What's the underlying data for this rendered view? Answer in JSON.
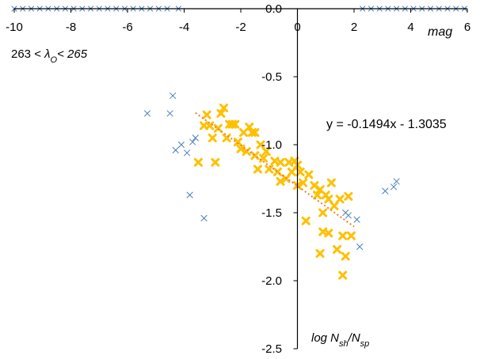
{
  "chart_data": {
    "type": "scatter",
    "title_parts": {
      "prefix": "263 < ",
      "symbol": "λ",
      "subscript": "O",
      "suffix": "< 265"
    },
    "xlabel": "mag",
    "ylabel_parts": {
      "a": "log N",
      "a_sub": "sh",
      "slash": "/N",
      "b_sub": "sp"
    },
    "xlim": [
      -10,
      6
    ],
    "ylim": [
      -2.5,
      0
    ],
    "x_ticks": [
      -10,
      -8,
      -6,
      -4,
      -2,
      0,
      2,
      4,
      6
    ],
    "y_ticks": [
      -2.5,
      -2.0,
      -1.5,
      -1.0,
      -0.5,
      0.0
    ],
    "x_tick_labels": [
      "-10",
      "-8",
      "-6",
      "-4",
      "-2",
      "0",
      "2",
      "4",
      "6"
    ],
    "y_tick_labels": [
      "-2.5",
      "-2.0",
      "-1.5",
      "-1.0",
      "-0.5",
      "0.0"
    ],
    "grid": false,
    "equation": "y = -0.1494x - 1.3035",
    "trendline": {
      "slope": -0.1494,
      "intercept": -1.3035,
      "x_range": [
        -3.6,
        2.0
      ]
    },
    "colors": {
      "all_points": "#4a7ebb",
      "fit_points": "#ffc000",
      "trendline": "#ed7d31",
      "axis": "#000000"
    },
    "series": [
      {
        "marker": "x",
        "points": [
          [
            -5.3,
            -0.77
          ],
          [
            -4.5,
            -0.77
          ],
          [
            -4.4,
            -0.64
          ],
          [
            -4.3,
            -1.04
          ],
          [
            -4.1,
            -1.0
          ],
          [
            -3.9,
            -1.06
          ],
          [
            -3.7,
            -0.98
          ],
          [
            -3.6,
            -0.95
          ],
          [
            -3.8,
            -1.37
          ],
          [
            -3.3,
            -1.54
          ],
          [
            1.8,
            -1.52
          ],
          [
            2.1,
            -1.55
          ],
          [
            1.7,
            -1.5
          ],
          [
            2.2,
            -1.75
          ],
          [
            3.1,
            -1.34
          ],
          [
            3.4,
            -1.31
          ],
          [
            3.5,
            -1.27
          ]
        ]
      },
      {
        "marker": "x-yellow",
        "points": [
          [
            -3.5,
            -1.13
          ],
          [
            -3.3,
            -0.86
          ],
          [
            -3.2,
            -0.78
          ],
          [
            -3.1,
            -0.86
          ],
          [
            -3.0,
            -0.95
          ],
          [
            -2.9,
            -1.13
          ],
          [
            -2.8,
            -0.88
          ],
          [
            -2.7,
            -0.77
          ],
          [
            -2.6,
            -0.73
          ],
          [
            -2.5,
            -0.95
          ],
          [
            -2.4,
            -0.85
          ],
          [
            -2.3,
            -0.85
          ],
          [
            -2.2,
            -0.85
          ],
          [
            -2.1,
            -0.98
          ],
          [
            -2.0,
            -1.03
          ],
          [
            -1.9,
            -0.91
          ],
          [
            -1.8,
            -1.05
          ],
          [
            -1.7,
            -0.87
          ],
          [
            -1.6,
            -0.91
          ],
          [
            -1.5,
            -0.91
          ],
          [
            -1.5,
            -1.08
          ],
          [
            -1.4,
            -1.18
          ],
          [
            -1.3,
            -1.0
          ],
          [
            -1.2,
            -1.1
          ],
          [
            -1.1,
            -1.05
          ],
          [
            -1.0,
            -1.18
          ],
          [
            -0.8,
            -1.12
          ],
          [
            -0.7,
            -1.2
          ],
          [
            -0.6,
            -1.13
          ],
          [
            -0.6,
            -1.27
          ],
          [
            -0.4,
            -1.25
          ],
          [
            -0.3,
            -1.13
          ],
          [
            -0.2,
            -1.2
          ],
          [
            -0.1,
            -1.12
          ],
          [
            0.0,
            -1.15
          ],
          [
            0.0,
            -1.3
          ],
          [
            0.1,
            -1.2
          ],
          [
            0.2,
            -1.28
          ],
          [
            0.3,
            -1.56
          ],
          [
            0.4,
            -1.22
          ],
          [
            0.6,
            -1.3
          ],
          [
            0.7,
            -1.37
          ],
          [
            0.8,
            -1.8
          ],
          [
            0.8,
            -1.33
          ],
          [
            0.9,
            -1.5
          ],
          [
            0.9,
            -1.64
          ],
          [
            1.0,
            -1.37
          ],
          [
            1.1,
            -1.4
          ],
          [
            1.1,
            -1.65
          ],
          [
            1.2,
            -1.28
          ],
          [
            1.3,
            -1.45
          ],
          [
            1.4,
            -1.77
          ],
          [
            1.5,
            -1.4
          ],
          [
            1.6,
            -1.96
          ],
          [
            1.6,
            -1.67
          ],
          [
            1.8,
            -1.38
          ],
          [
            1.7,
            -1.82
          ],
          [
            1.9,
            -1.67
          ]
        ]
      },
      {
        "marker": "x-row",
        "points": [
          [
            -10.0,
            0.0
          ],
          [
            -9.7,
            0.0
          ],
          [
            -9.4,
            0.0
          ],
          [
            -9.1,
            0.0
          ],
          [
            -8.8,
            0.0
          ],
          [
            -8.5,
            0.0
          ],
          [
            -8.2,
            0.0
          ],
          [
            -7.9,
            0.0
          ],
          [
            -7.6,
            0.0
          ],
          [
            -7.3,
            0.0
          ],
          [
            -7.0,
            0.0
          ],
          [
            -6.7,
            0.0
          ],
          [
            -6.4,
            0.0
          ],
          [
            -6.1,
            0.0
          ],
          [
            -5.8,
            0.0
          ],
          [
            -5.5,
            0.0
          ],
          [
            -5.2,
            0.0
          ],
          [
            -4.9,
            0.0
          ],
          [
            -4.6,
            0.0
          ],
          [
            -4.2,
            0.0
          ],
          [
            2.3,
            0.0
          ],
          [
            2.6,
            0.0
          ],
          [
            2.9,
            0.0
          ],
          [
            3.2,
            0.0
          ],
          [
            3.5,
            0.0
          ],
          [
            3.8,
            0.0
          ],
          [
            4.1,
            0.0
          ],
          [
            4.4,
            0.0
          ],
          [
            4.7,
            0.0
          ],
          [
            5.0,
            0.0
          ],
          [
            5.3,
            0.0
          ],
          [
            5.6,
            0.0
          ],
          [
            5.9,
            0.0
          ]
        ]
      }
    ]
  }
}
